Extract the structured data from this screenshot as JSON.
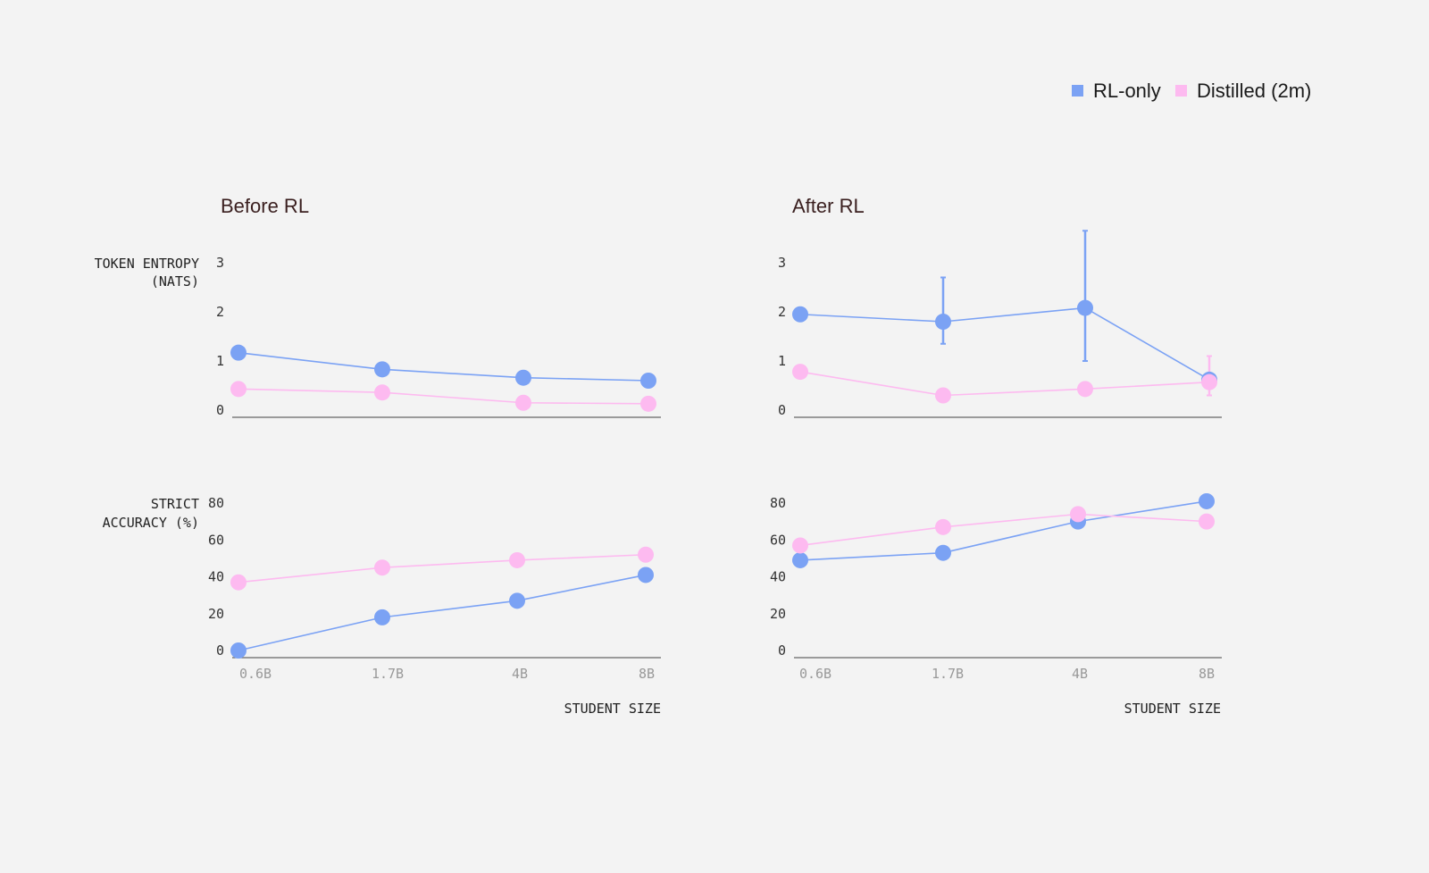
{
  "legend": [
    {
      "label": "RL-only",
      "color": "#7ba2f4"
    },
    {
      "label": "Distilled (2m)",
      "color": "#fdbaf0"
    }
  ],
  "colors": {
    "rl_only": "#7ba2f4",
    "distilled": "#fdbaf0",
    "axis": "#666666"
  },
  "labels": {
    "entropy_line1": "TOKEN ENTROPY",
    "entropy_line2": "(NATS)",
    "accuracy_line1": "STRICT",
    "accuracy_line2": "ACCURACY (%)",
    "xlabel": "STUDENT SIZE"
  },
  "chart_data": [
    {
      "id": "before-entropy",
      "type": "line",
      "title": "Before RL",
      "ylabel": "TOKEN ENTROPY (NATS)",
      "categories": [
        "0.6B",
        "1.7B",
        "4B",
        "8B"
      ],
      "ylim": [
        0,
        3
      ],
      "yticks": [
        0,
        1,
        2,
        3
      ],
      "series": [
        {
          "name": "RL-only",
          "values": [
            1.17,
            0.83,
            0.66,
            0.6
          ]
        },
        {
          "name": "Distilled (2m)",
          "values": [
            0.43,
            0.36,
            0.15,
            0.13
          ]
        }
      ]
    },
    {
      "id": "after-entropy",
      "type": "line",
      "title": "After RL",
      "ylabel": "",
      "categories": [
        "0.6B",
        "1.7B",
        "4B",
        "8B"
      ],
      "ylim": [
        0,
        3
      ],
      "yticks": [
        0,
        1,
        2,
        3
      ],
      "series": [
        {
          "name": "RL-only",
          "values": [
            1.95,
            1.8,
            2.08,
            0.62
          ],
          "error": [
            null,
            [
              1.35,
              2.7
            ],
            [
              1.0,
              3.65
            ],
            null
          ]
        },
        {
          "name": "Distilled (2m)",
          "values": [
            0.78,
            0.3,
            0.43,
            0.57
          ],
          "error": [
            null,
            null,
            null,
            [
              0.3,
              1.1
            ]
          ]
        }
      ]
    },
    {
      "id": "before-accuracy",
      "type": "line",
      "title": "",
      "ylabel": "STRICT ACCURACY (%)",
      "xlabel": "STUDENT SIZE",
      "categories": [
        "0.6B",
        "1.7B",
        "4B",
        "8B"
      ],
      "ylim": [
        0,
        80
      ],
      "yticks": [
        0,
        20,
        40,
        60,
        80
      ],
      "series": [
        {
          "name": "RL-only",
          "values": [
            0,
            18,
            27,
            41
          ]
        },
        {
          "name": "Distilled (2m)",
          "values": [
            37,
            45,
            49,
            52
          ]
        }
      ]
    },
    {
      "id": "after-accuracy",
      "type": "line",
      "title": "",
      "ylabel": "",
      "xlabel": "STUDENT SIZE",
      "categories": [
        "0.6B",
        "1.7B",
        "4B",
        "8B"
      ],
      "ylim": [
        0,
        80
      ],
      "yticks": [
        0,
        20,
        40,
        60,
        80
      ],
      "series": [
        {
          "name": "RL-only",
          "values": [
            49,
            53,
            70,
            81
          ]
        },
        {
          "name": "Distilled (2m)",
          "values": [
            57,
            67,
            74,
            70
          ]
        }
      ]
    }
  ]
}
